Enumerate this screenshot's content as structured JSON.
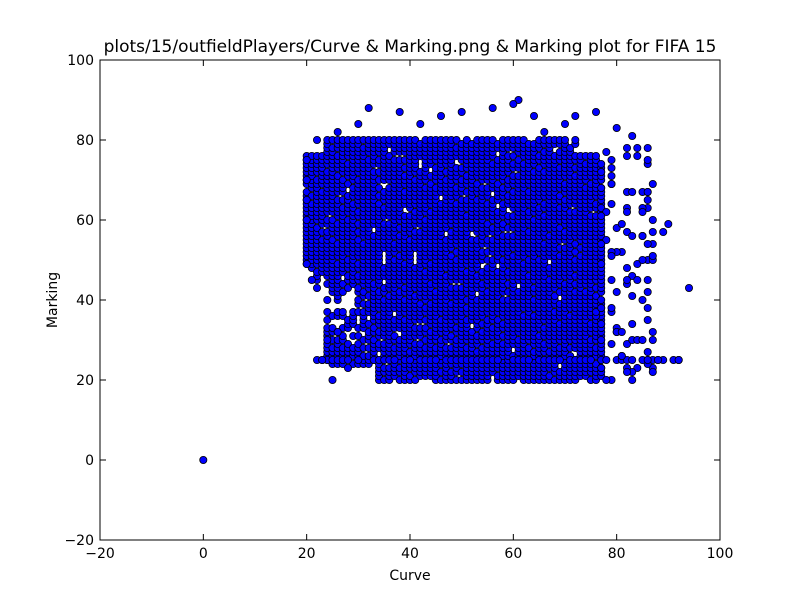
{
  "chart_data": {
    "type": "scatter",
    "title": "plots/15/outfieldPlayers/Curve & Marking.png & Marking plot for FIFA 15",
    "xlabel": "Curve",
    "ylabel": "Marking",
    "xlim": [
      -20,
      100
    ],
    "ylim": [
      -20,
      100
    ],
    "xticks": [
      -20,
      0,
      20,
      40,
      60,
      80,
      100
    ],
    "yticks": [
      -20,
      0,
      20,
      40,
      60,
      80,
      100
    ],
    "grid": false,
    "legend": "none",
    "marker_color": "#0000ff",
    "marker_edge": "#000000",
    "series": [
      {
        "points": [
          [
            0,
            0
          ],
          [
            94,
            43
          ],
          [
            92,
            25
          ],
          [
            90,
            59
          ],
          [
            89,
            57
          ],
          [
            88,
            25
          ],
          [
            87,
            22
          ],
          [
            87,
            60
          ],
          [
            87,
            69
          ],
          [
            86,
            25
          ],
          [
            86,
            35
          ],
          [
            86,
            42
          ],
          [
            86,
            75
          ],
          [
            85,
            30
          ],
          [
            85,
            50
          ],
          [
            84,
            78
          ],
          [
            83,
            20
          ],
          [
            83,
            81
          ],
          [
            82,
            45
          ],
          [
            82,
            62
          ],
          [
            80,
            83
          ],
          [
            78,
            20
          ],
          [
            76,
            87
          ],
          [
            72,
            86
          ],
          [
            70,
            84
          ],
          [
            66,
            82
          ],
          [
            64,
            86
          ],
          [
            61,
            90
          ],
          [
            60,
            89
          ],
          [
            56,
            88
          ],
          [
            50,
            87
          ],
          [
            46,
            86
          ],
          [
            42,
            84
          ],
          [
            38,
            87
          ],
          [
            32,
            88
          ],
          [
            30,
            84
          ],
          [
            26,
            82
          ],
          [
            22,
            80
          ],
          [
            20,
            75
          ],
          [
            20,
            49
          ],
          [
            21,
            45
          ],
          [
            22,
            43
          ],
          [
            23,
            25
          ],
          [
            24,
            30
          ],
          [
            26,
            32
          ],
          [
            25,
            20
          ],
          [
            28,
            23
          ],
          [
            20,
            60
          ],
          [
            20,
            65
          ],
          [
            20,
            70
          ]
        ]
      }
    ]
  }
}
